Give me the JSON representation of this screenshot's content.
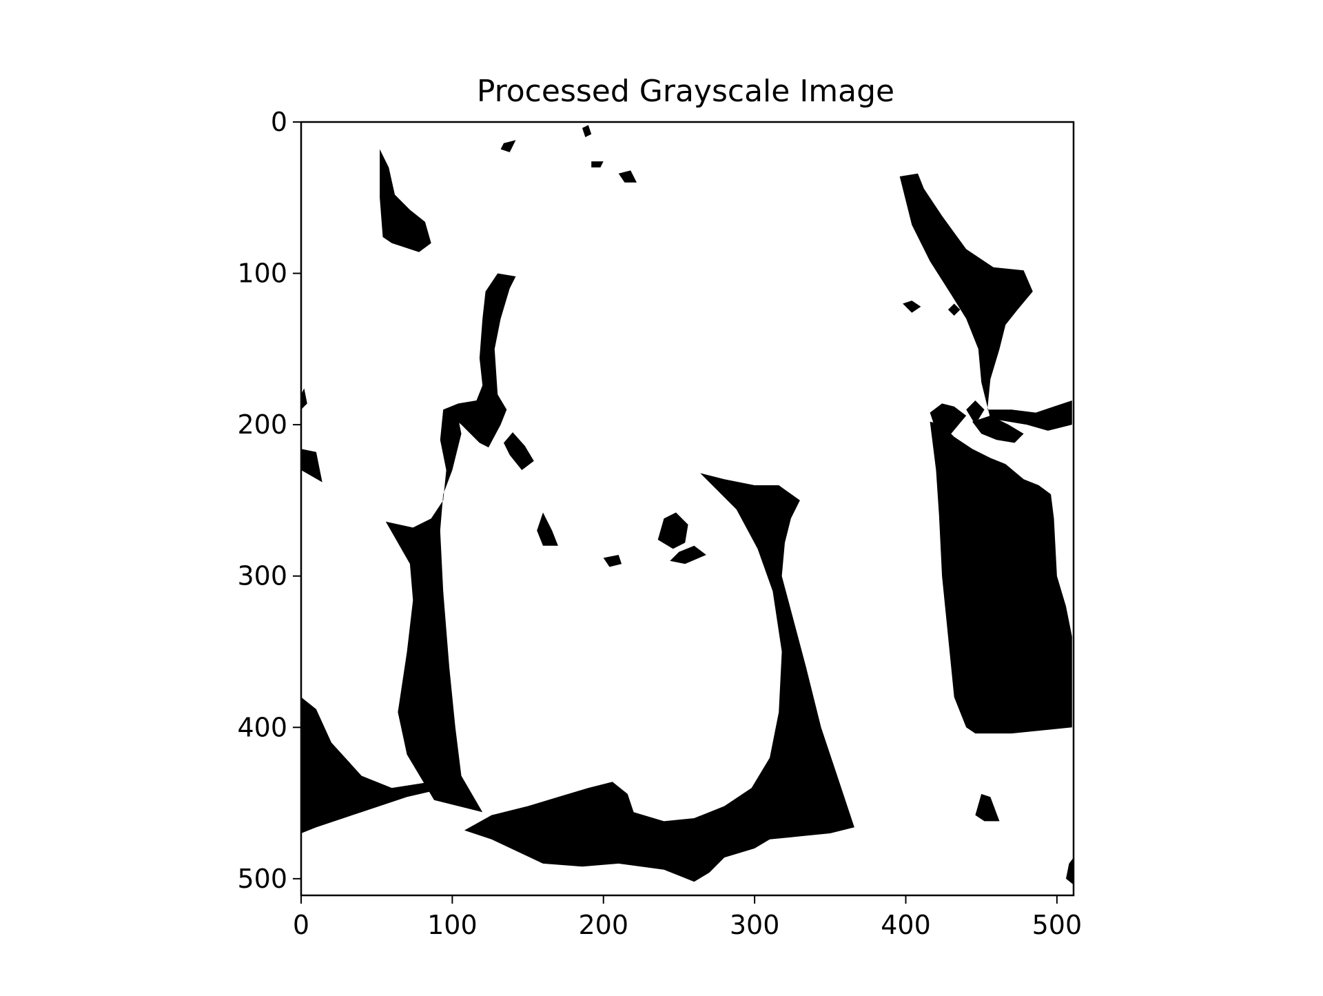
{
  "chart_data": {
    "type": "heatmap",
    "title": "Processed Grayscale Image",
    "xlabel": "",
    "ylabel": "",
    "xlim": [
      0,
      511
    ],
    "ylim": [
      511,
      0
    ],
    "x_ticks": [
      0,
      100,
      200,
      300,
      400,
      500
    ],
    "y_ticks": [
      0,
      100,
      200,
      300,
      400,
      500
    ],
    "colormap": "binary",
    "levels": {
      "black": "#000000",
      "white": "#ffffff"
    },
    "black_regions": [
      [
        [
          52,
          18
        ],
        [
          58,
          30
        ],
        [
          62,
          48
        ],
        [
          72,
          58
        ],
        [
          82,
          66
        ],
        [
          86,
          80
        ],
        [
          78,
          86
        ],
        [
          60,
          80
        ],
        [
          54,
          76
        ],
        [
          52,
          50
        ],
        [
          52,
          30
        ]
      ],
      [
        [
          130,
          100
        ],
        [
          142,
          102
        ],
        [
          138,
          110
        ],
        [
          132,
          130
        ],
        [
          128,
          150
        ],
        [
          130,
          180
        ],
        [
          136,
          190
        ],
        [
          132,
          200
        ],
        [
          124,
          215
        ],
        [
          118,
          212
        ],
        [
          106,
          200
        ],
        [
          94,
          190
        ],
        [
          104,
          186
        ],
        [
          116,
          184
        ],
        [
          120,
          174
        ],
        [
          118,
          156
        ],
        [
          120,
          130
        ],
        [
          122,
          112
        ]
      ],
      [
        [
          140,
          205
        ],
        [
          148,
          214
        ],
        [
          154,
          224
        ],
        [
          146,
          230
        ],
        [
          138,
          220
        ],
        [
          134,
          212
        ]
      ],
      [
        [
          94,
          190
        ],
        [
          104,
          196
        ],
        [
          106,
          206
        ],
        [
          100,
          230
        ],
        [
          94,
          246
        ],
        [
          92,
          270
        ],
        [
          94,
          310
        ],
        [
          98,
          360
        ],
        [
          102,
          400
        ],
        [
          106,
          432
        ],
        [
          120,
          456
        ],
        [
          88,
          448
        ],
        [
          70,
          418
        ],
        [
          64,
          390
        ],
        [
          70,
          350
        ],
        [
          74,
          316
        ],
        [
          72,
          292
        ],
        [
          56,
          264
        ],
        [
          74,
          268
        ],
        [
          86,
          262
        ],
        [
          94,
          250
        ],
        [
          96,
          230
        ],
        [
          92,
          210
        ]
      ],
      [
        [
          0,
          216
        ],
        [
          10,
          218
        ],
        [
          14,
          238
        ],
        [
          0,
          230
        ]
      ],
      [
        [
          0,
          380
        ],
        [
          10,
          388
        ],
        [
          20,
          410
        ],
        [
          40,
          432
        ],
        [
          60,
          440
        ],
        [
          86,
          436
        ],
        [
          96,
          440
        ],
        [
          70,
          446
        ],
        [
          40,
          456
        ],
        [
          10,
          466
        ],
        [
          0,
          470
        ]
      ],
      [
        [
          264,
          232
        ],
        [
          280,
          236
        ],
        [
          300,
          240
        ],
        [
          316,
          240
        ],
        [
          330,
          250
        ],
        [
          324,
          262
        ],
        [
          320,
          278
        ],
        [
          318,
          300
        ],
        [
          326,
          330
        ],
        [
          334,
          360
        ],
        [
          344,
          400
        ],
        [
          354,
          430
        ],
        [
          366,
          466
        ],
        [
          350,
          470
        ],
        [
          330,
          472
        ],
        [
          310,
          474
        ],
        [
          300,
          480
        ],
        [
          280,
          486
        ],
        [
          270,
          496
        ],
        [
          260,
          502
        ],
        [
          240,
          494
        ],
        [
          210,
          490
        ],
        [
          186,
          492
        ],
        [
          160,
          490
        ],
        [
          126,
          474
        ],
        [
          108,
          468
        ],
        [
          126,
          458
        ],
        [
          150,
          452
        ],
        [
          170,
          446
        ],
        [
          190,
          440
        ],
        [
          206,
          436
        ],
        [
          216,
          444
        ],
        [
          220,
          456
        ],
        [
          240,
          462
        ],
        [
          260,
          460
        ],
        [
          280,
          452
        ],
        [
          298,
          440
        ],
        [
          310,
          420
        ],
        [
          316,
          390
        ],
        [
          318,
          350
        ],
        [
          312,
          310
        ],
        [
          302,
          282
        ],
        [
          288,
          256
        ],
        [
          274,
          242
        ]
      ],
      [
        [
          240,
          262
        ],
        [
          248,
          258
        ],
        [
          256,
          266
        ],
        [
          254,
          278
        ],
        [
          246,
          282
        ],
        [
          236,
          276
        ]
      ],
      [
        [
          160,
          258
        ],
        [
          166,
          270
        ],
        [
          170,
          280
        ],
        [
          160,
          280
        ],
        [
          156,
          270
        ]
      ],
      [
        [
          250,
          284
        ],
        [
          260,
          280
        ],
        [
          268,
          286
        ],
        [
          254,
          292
        ],
        [
          244,
          290
        ]
      ],
      [
        [
          200,
          288
        ],
        [
          210,
          286
        ],
        [
          212,
          292
        ],
        [
          204,
          294
        ]
      ],
      [
        [
          416,
          198
        ],
        [
          424,
          200
        ],
        [
          432,
          208
        ],
        [
          444,
          216
        ],
        [
          456,
          222
        ],
        [
          466,
          226
        ],
        [
          478,
          236
        ],
        [
          488,
          240
        ],
        [
          496,
          246
        ],
        [
          498,
          262
        ],
        [
          500,
          300
        ],
        [
          506,
          320
        ],
        [
          510,
          340
        ],
        [
          510,
          400
        ],
        [
          470,
          404
        ],
        [
          446,
          404
        ],
        [
          440,
          400
        ],
        [
          432,
          380
        ],
        [
          428,
          340
        ],
        [
          424,
          300
        ],
        [
          422,
          260
        ],
        [
          420,
          230
        ]
      ],
      [
        [
          416,
          192
        ],
        [
          424,
          186
        ],
        [
          432,
          188
        ],
        [
          440,
          194
        ],
        [
          430,
          206
        ],
        [
          420,
          204
        ]
      ],
      [
        [
          444,
          198
        ],
        [
          456,
          194
        ],
        [
          468,
          200
        ],
        [
          478,
          206
        ],
        [
          472,
          212
        ],
        [
          460,
          210
        ],
        [
          450,
          206
        ]
      ],
      [
        [
          396,
          36
        ],
        [
          408,
          34
        ],
        [
          412,
          44
        ],
        [
          424,
          62
        ],
        [
          440,
          84
        ],
        [
          458,
          96
        ],
        [
          478,
          98
        ],
        [
          484,
          112
        ],
        [
          474,
          124
        ],
        [
          466,
          134
        ],
        [
          462,
          150
        ],
        [
          456,
          170
        ],
        [
          454,
          190
        ],
        [
          470,
          190
        ],
        [
          486,
          192
        ],
        [
          498,
          188
        ],
        [
          510,
          184
        ],
        [
          510,
          200
        ],
        [
          494,
          204
        ],
        [
          480,
          200
        ],
        [
          468,
          198
        ],
        [
          456,
          196
        ],
        [
          450,
          172
        ],
        [
          448,
          150
        ],
        [
          440,
          130
        ],
        [
          430,
          114
        ],
        [
          416,
          92
        ],
        [
          404,
          68
        ]
      ],
      [
        [
          440,
          190
        ],
        [
          446,
          184
        ],
        [
          452,
          190
        ],
        [
          446,
          200
        ]
      ],
      [
        [
          450,
          444
        ],
        [
          456,
          446
        ],
        [
          462,
          462
        ],
        [
          452,
          462
        ],
        [
          446,
          458
        ]
      ],
      [
        [
          398,
          120
        ],
        [
          404,
          118
        ],
        [
          410,
          122
        ],
        [
          404,
          126
        ]
      ],
      [
        [
          428,
          124
        ],
        [
          432,
          120
        ],
        [
          436,
          124
        ],
        [
          432,
          128
        ]
      ],
      [
        [
          134,
          14
        ],
        [
          142,
          12
        ],
        [
          138,
          20
        ],
        [
          132,
          18
        ]
      ],
      [
        [
          186,
          4
        ],
        [
          190,
          2
        ],
        [
          192,
          8
        ],
        [
          188,
          10
        ]
      ],
      [
        [
          210,
          34
        ],
        [
          218,
          32
        ],
        [
          222,
          40
        ],
        [
          214,
          40
        ]
      ],
      [
        [
          192,
          26
        ],
        [
          200,
          26
        ],
        [
          198,
          30
        ],
        [
          192,
          30
        ]
      ],
      [
        [
          0,
          180
        ],
        [
          2,
          176
        ],
        [
          4,
          186
        ],
        [
          0,
          190
        ]
      ],
      [
        [
          508,
          490
        ],
        [
          511,
          486
        ],
        [
          511,
          504
        ],
        [
          506,
          500
        ]
      ]
    ]
  }
}
